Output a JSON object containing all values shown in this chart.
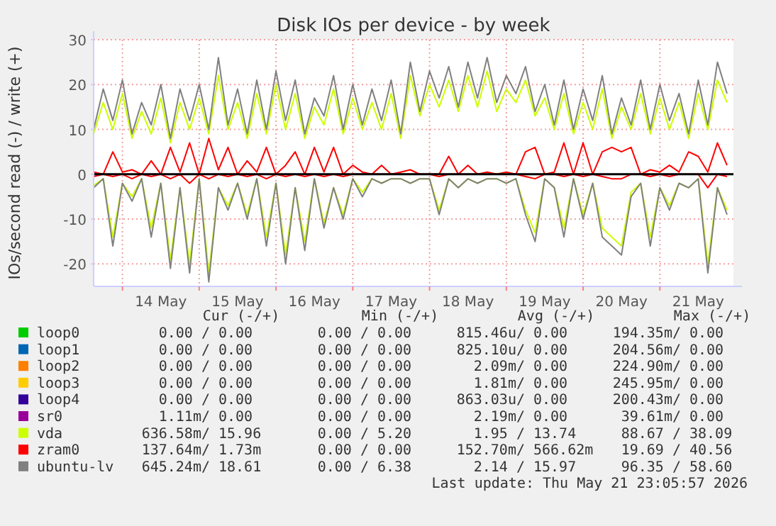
{
  "chart_data": {
    "type": "line",
    "title": "Disk IOs per device - by week",
    "ylabel": "IOs/second read (-) / write (+)",
    "x": [
      "2026-05-13T15:00",
      "2026-05-13T18:00",
      "2026-05-13T21:00",
      "2026-05-14T00:00",
      "2026-05-14T03:00",
      "2026-05-14T06:00",
      "2026-05-14T09:00",
      "2026-05-14T12:00",
      "2026-05-14T15:00",
      "2026-05-14T18:00",
      "2026-05-14T21:00",
      "2026-05-15T00:00",
      "2026-05-15T03:00",
      "2026-05-15T06:00",
      "2026-05-15T09:00",
      "2026-05-15T12:00",
      "2026-05-15T15:00",
      "2026-05-15T18:00",
      "2026-05-15T21:00",
      "2026-05-16T00:00",
      "2026-05-16T03:00",
      "2026-05-16T06:00",
      "2026-05-16T09:00",
      "2026-05-16T12:00",
      "2026-05-16T15:00",
      "2026-05-16T18:00",
      "2026-05-16T21:00",
      "2026-05-17T00:00",
      "2026-05-17T03:00",
      "2026-05-17T06:00",
      "2026-05-17T09:00",
      "2026-05-17T12:00",
      "2026-05-17T15:00",
      "2026-05-17T18:00",
      "2026-05-17T21:00",
      "2026-05-18T00:00",
      "2026-05-18T03:00",
      "2026-05-18T06:00",
      "2026-05-18T09:00",
      "2026-05-18T12:00",
      "2026-05-18T15:00",
      "2026-05-18T18:00",
      "2026-05-18T21:00",
      "2026-05-19T00:00",
      "2026-05-19T03:00",
      "2026-05-19T06:00",
      "2026-05-19T09:00",
      "2026-05-19T12:00",
      "2026-05-19T15:00",
      "2026-05-19T18:00",
      "2026-05-19T21:00",
      "2026-05-20T00:00",
      "2026-05-20T03:00",
      "2026-05-20T06:00",
      "2026-05-20T09:00",
      "2026-05-20T12:00",
      "2026-05-20T15:00",
      "2026-05-20T18:00",
      "2026-05-20T21:00",
      "2026-05-21T00:00",
      "2026-05-21T03:00",
      "2026-05-21T06:00",
      "2026-05-21T09:00",
      "2026-05-21T12:00",
      "2026-05-21T15:00",
      "2026-05-21T18:00",
      "2026-05-21T21:00"
    ],
    "xlim": [
      "2026-05-13T15:00",
      "2026-05-21T23:00"
    ],
    "xticks": [
      {
        "value": "2026-05-14T00:00",
        "label": null
      },
      {
        "value": "2026-05-14T12:00",
        "label": "14 May"
      },
      {
        "value": "2026-05-15T00:00",
        "label": null
      },
      {
        "value": "2026-05-15T12:00",
        "label": "15 May"
      },
      {
        "value": "2026-05-16T00:00",
        "label": null
      },
      {
        "value": "2026-05-16T12:00",
        "label": "16 May"
      },
      {
        "value": "2026-05-17T00:00",
        "label": null
      },
      {
        "value": "2026-05-17T12:00",
        "label": "17 May"
      },
      {
        "value": "2026-05-18T00:00",
        "label": null
      },
      {
        "value": "2026-05-18T12:00",
        "label": "18 May"
      },
      {
        "value": "2026-05-19T00:00",
        "label": null
      },
      {
        "value": "2026-05-19T12:00",
        "label": "19 May"
      },
      {
        "value": "2026-05-20T00:00",
        "label": null
      },
      {
        "value": "2026-05-20T12:00",
        "label": "20 May"
      },
      {
        "value": "2026-05-21T00:00",
        "label": null
      },
      {
        "value": "2026-05-21T12:00",
        "label": "21 May"
      }
    ],
    "ylim": [
      -25,
      30
    ],
    "yticks": [
      -20,
      -10,
      0,
      10,
      20,
      30
    ],
    "grid": true,
    "legend": "bottom",
    "marker": "none",
    "line_style": "solid",
    "ref_lines": [
      {
        "axis": "y",
        "value": 0,
        "color": "#000000"
      }
    ],
    "series": [
      {
        "name": "loop0",
        "color": "#00cc00",
        "values": [
          null,
          null,
          null,
          null,
          null,
          null,
          null,
          null,
          null,
          null,
          null,
          null,
          null,
          null,
          null,
          null,
          null,
          null,
          null,
          null,
          null,
          null,
          null,
          null,
          null,
          null,
          null,
          null,
          null,
          null,
          null,
          null,
          null,
          null,
          null,
          null,
          null,
          null,
          null,
          null,
          null,
          null,
          null,
          null,
          null,
          null,
          null,
          null,
          null,
          null,
          null,
          null,
          null,
          null,
          null,
          null,
          null,
          null,
          null,
          null,
          null,
          null,
          null,
          null,
          null,
          null,
          null
        ]
      },
      {
        "name": "loop1",
        "color": "#0066b3",
        "values": [
          null,
          null,
          null,
          null,
          null,
          null,
          null,
          null,
          null,
          null,
          null,
          null,
          null,
          null,
          null,
          null,
          null,
          null,
          null,
          null,
          null,
          null,
          null,
          null,
          null,
          null,
          null,
          null,
          null,
          null,
          null,
          null,
          null,
          null,
          null,
          null,
          null,
          null,
          null,
          null,
          null,
          null,
          null,
          null,
          null,
          null,
          null,
          null,
          null,
          null,
          null,
          null,
          null,
          null,
          null,
          null,
          null,
          null,
          null,
          null,
          null,
          null,
          null,
          null,
          null,
          null,
          null
        ]
      },
      {
        "name": "loop2",
        "color": "#ff8000",
        "values": [
          null,
          null,
          null,
          null,
          null,
          null,
          null,
          null,
          null,
          null,
          null,
          null,
          null,
          null,
          null,
          null,
          null,
          null,
          null,
          null,
          null,
          null,
          null,
          null,
          null,
          null,
          null,
          null,
          null,
          null,
          null,
          null,
          null,
          null,
          null,
          null,
          null,
          null,
          null,
          null,
          null,
          null,
          null,
          null,
          null,
          null,
          null,
          null,
          null,
          null,
          null,
          null,
          null,
          null,
          null,
          null,
          null,
          null,
          null,
          null,
          null,
          null,
          null,
          null,
          null,
          null,
          null
        ]
      },
      {
        "name": "loop3",
        "color": "#ffcc00",
        "values": [
          null,
          null,
          null,
          null,
          null,
          null,
          null,
          null,
          null,
          null,
          null,
          null,
          null,
          null,
          null,
          null,
          null,
          null,
          null,
          null,
          null,
          null,
          null,
          null,
          null,
          null,
          null,
          null,
          null,
          null,
          null,
          null,
          null,
          null,
          null,
          null,
          null,
          null,
          null,
          null,
          null,
          null,
          null,
          null,
          null,
          null,
          null,
          null,
          null,
          null,
          null,
          null,
          null,
          null,
          null,
          null,
          null,
          null,
          null,
          null,
          null,
          null,
          null,
          null,
          null,
          null,
          null
        ]
      },
      {
        "name": "loop4",
        "color": "#330099",
        "values": [
          null,
          null,
          null,
          null,
          null,
          null,
          null,
          null,
          null,
          null,
          null,
          null,
          null,
          null,
          null,
          null,
          null,
          null,
          null,
          null,
          null,
          null,
          null,
          null,
          null,
          null,
          null,
          null,
          null,
          null,
          null,
          null,
          null,
          null,
          null,
          null,
          null,
          null,
          null,
          null,
          null,
          null,
          null,
          null,
          null,
          null,
          null,
          null,
          null,
          null,
          null,
          null,
          null,
          null,
          null,
          null,
          null,
          null,
          null,
          null,
          null,
          null,
          null,
          null,
          null,
          null,
          null
        ]
      },
      {
        "name": "sr0",
        "color": "#990099",
        "values": [
          null,
          null,
          null,
          null,
          null,
          null,
          null,
          null,
          null,
          null,
          null,
          null,
          null,
          null,
          null,
          null,
          null,
          null,
          null,
          null,
          null,
          null,
          null,
          null,
          null,
          null,
          null,
          null,
          null,
          null,
          null,
          null,
          null,
          null,
          null,
          null,
          null,
          null,
          null,
          null,
          null,
          null,
          null,
          null,
          null,
          null,
          null,
          null,
          null,
          null,
          null,
          null,
          null,
          null,
          null,
          null,
          null,
          null,
          null,
          null,
          null,
          null,
          null,
          null,
          null,
          null,
          null
        ]
      },
      {
        "color": "#ccff00",
        "values": [
          -2.5,
          -1,
          -14,
          -2,
          -5,
          -1,
          -12,
          -2,
          -19,
          -3,
          -20,
          -1,
          -22,
          -3,
          -7,
          -2,
          -9,
          -1,
          -14,
          -2,
          -18,
          -3,
          -15,
          -1,
          -11,
          -3,
          -9,
          -1,
          -4,
          -1,
          -2,
          -1,
          -1,
          -2,
          -1,
          -1,
          -8,
          -1,
          -3,
          -1,
          -2,
          -1,
          -1,
          -2,
          -1,
          -8,
          -13,
          -1,
          -3,
          -12,
          -1,
          -9,
          -2,
          -12,
          -14,
          -16,
          -4,
          -2,
          -14,
          -3,
          -7,
          -2,
          -3,
          -1,
          -20,
          -3,
          -8
        ]
      },
      {
        "name": "vda",
        "color": "#ccff00",
        "values": [
          9,
          16,
          10,
          18,
          8,
          14,
          9,
          17,
          7,
          16,
          10,
          17,
          9,
          22,
          10,
          16,
          8,
          18,
          9,
          20,
          10,
          18,
          8,
          15,
          11,
          19,
          9,
          17,
          10,
          16,
          10,
          18,
          8,
          22,
          13,
          20,
          15,
          21,
          14,
          22,
          15,
          23,
          14,
          19,
          16,
          21,
          13,
          17,
          10,
          18,
          9,
          16,
          10,
          19,
          8,
          15,
          10,
          18,
          9,
          17,
          10,
          16,
          8,
          18,
          10,
          21,
          16
        ]
      },
      {
        "color": "#ff0000",
        "values": [
          -0.5,
          0,
          -0.5,
          0,
          -1,
          0,
          -0.5,
          0,
          -1,
          0,
          -2,
          0,
          -1,
          0,
          -0.5,
          0,
          -0.5,
          0,
          -1,
          0,
          -0.5,
          0,
          -0.5,
          0,
          -0.5,
          0,
          -0.5,
          0,
          0,
          0,
          0,
          0,
          0,
          0,
          0,
          0,
          -0.5,
          0,
          0,
          0,
          0,
          0,
          0,
          0,
          0,
          -0.5,
          -1,
          0,
          0,
          -0.5,
          0,
          -0.5,
          0,
          -0.5,
          -1,
          -1,
          0,
          0,
          -0.5,
          0,
          -0.5,
          0,
          0,
          0,
          -3,
          0,
          -0.5
        ]
      },
      {
        "name": "zram0",
        "color": "#ff0000",
        "values": [
          0.5,
          0,
          5,
          0.5,
          1,
          0,
          3,
          0,
          6,
          0.5,
          7,
          0,
          8,
          1,
          6,
          0,
          3,
          0.5,
          6,
          0,
          2,
          5,
          0,
          6,
          0.5,
          6,
          0,
          2,
          0.5,
          0,
          2,
          0,
          0.5,
          1,
          0,
          0,
          0,
          4,
          0,
          2,
          0,
          0.5,
          0,
          0.5,
          0,
          5,
          6,
          0,
          0.5,
          7,
          0,
          7,
          0,
          5,
          6,
          5,
          6,
          0,
          1,
          0.5,
          2,
          0.5,
          5,
          4,
          0.5,
          7,
          2
        ]
      },
      {
        "color": "#808080",
        "values": [
          -3,
          -1,
          -16,
          -2,
          -6,
          -1,
          -14,
          -2,
          -21,
          -3,
          -22,
          -1,
          -24,
          -3,
          -8,
          -2,
          -10,
          -1,
          -16,
          -2,
          -20,
          -3,
          -17,
          -1,
          -12,
          -3,
          -10,
          -1,
          -5,
          -1,
          -2,
          -1,
          -1,
          -2,
          -1,
          -1,
          -9,
          -1,
          -3,
          -1,
          -2,
          -1,
          -1,
          -2,
          -1,
          -9,
          -15,
          -1,
          -3,
          -14,
          -1,
          -10,
          -2,
          -14,
          -16,
          -18,
          -5,
          -2,
          -16,
          -3,
          -8,
          -2,
          -3,
          -1,
          -22,
          -3,
          -9
        ]
      },
      {
        "name": "ubuntu-lv",
        "color": "#808080",
        "values": [
          10,
          19,
          12,
          21,
          9,
          16,
          11,
          20,
          8,
          19,
          12,
          20,
          10,
          26,
          11,
          19,
          9,
          21,
          10,
          23,
          12,
          21,
          9,
          17,
          13,
          22,
          10,
          20,
          11,
          19,
          12,
          21,
          9,
          25,
          14,
          23,
          17,
          24,
          15,
          25,
          17,
          26,
          16,
          22,
          18,
          24,
          14,
          20,
          11,
          21,
          10,
          19,
          12,
          22,
          9,
          17,
          11,
          21,
          10,
          20,
          12,
          18,
          9,
          21,
          11,
          25,
          18
        ]
      }
    ],
    "annotations": [
      "Cur (-/+)",
      "Min (-/+)",
      "Avg (-/+)",
      "Max (-/+)",
      "0.00 / 0.00",
      "0.00 / 0.00",
      "815.46u/ 0.00",
      "194.35m/ 0.00",
      "0.00 / 0.00",
      "0.00 / 0.00",
      "825.10u/ 0.00",
      "204.56m/ 0.00",
      "0.00 / 0.00",
      "0.00 / 0.00",
      "2.09m/ 0.00",
      "224.90m/ 0.00",
      "0.00 / 0.00",
      "0.00 / 0.00",
      "1.81m/ 0.00",
      "245.95m/ 0.00",
      "0.00 / 0.00",
      "0.00 / 0.00",
      "863.03u/ 0.00",
      "200.43m/ 0.00",
      "1.11m/ 0.00",
      "0.00 / 0.00",
      "2.19m/ 0.00",
      "39.61m/ 0.00",
      "636.58m/ 15.96",
      "0.00 / 5.20",
      "1.95 / 13.74",
      "88.67 / 38.09",
      "137.64m/ 1.73m",
      "0.00 / 0.00",
      "152.70m/ 566.62m",
      "19.69 / 40.56",
      "645.24m/ 18.61",
      "0.00 / 6.38",
      "2.14 / 15.97",
      "96.35 / 58.60",
      "Last update: Thu May 21 23:05:57 2026"
    ]
  }
}
